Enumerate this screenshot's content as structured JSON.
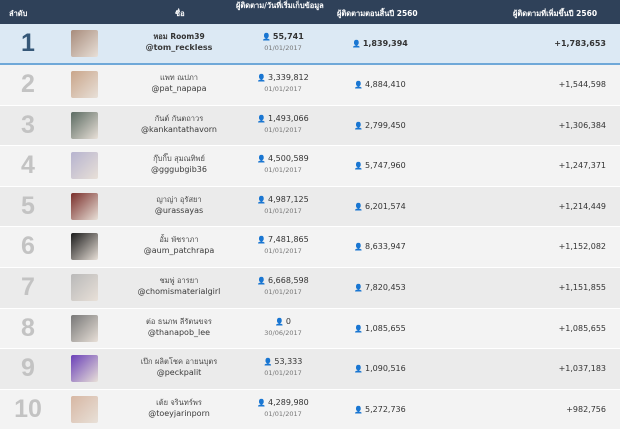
{
  "header": {
    "rank": "ลำดับ",
    "name": "ชื่อ",
    "start": "ผู้ติดตาม/วันที่เริ่มเก็บข้อมูล",
    "end": "ผู้ติดตามตอนสิ้นปี 2560",
    "growth": "ผู้ติดตามที่เพิ่มขึ้นปี 2560"
  },
  "rows": [
    {
      "rank": "1",
      "name": "หอม Room39",
      "handle": "@tom_reckless",
      "start": "55,741",
      "date": "01/01/2017",
      "end": "1,839,394",
      "growth": "+1,783,653",
      "avatar_color": "#a88c7c"
    },
    {
      "rank": "2",
      "name": "แพท ณปภา",
      "handle": "@pat_napapa",
      "start": "3,339,812",
      "date": "01/01/2017",
      "end": "4,884,410",
      "growth": "+1,544,598",
      "avatar_color": "#c9a58a"
    },
    {
      "rank": "3",
      "name": "กันต์ กันตถาวร",
      "handle": "@kankantathavorn",
      "start": "1,493,066",
      "date": "01/01/2017",
      "end": "2,799,450",
      "growth": "+1,306,384",
      "avatar_color": "#5b6b62"
    },
    {
      "rank": "4",
      "name": "กุ๊บกิ๊บ สุมณทิพย์",
      "handle": "@gggubgib36",
      "start": "4,500,589",
      "date": "01/01/2017",
      "end": "5,747,960",
      "growth": "+1,247,371",
      "avatar_color": "#b6b3cf"
    },
    {
      "rank": "5",
      "name": "ญาญ่า อุรัสยา",
      "handle": "@urassayas",
      "start": "4,987,125",
      "date": "01/01/2017",
      "end": "6,201,574",
      "growth": "+1,214,449",
      "avatar_color": "#7a2e2a"
    },
    {
      "rank": "6",
      "name": "อั้ม พัชราภา",
      "handle": "@aum_patchrapa",
      "start": "7,481,865",
      "date": "01/01/2017",
      "end": "8,633,947",
      "growth": "+1,152,082",
      "avatar_color": "#1b1b1b"
    },
    {
      "rank": "7",
      "name": "ชมพู่ อารยา",
      "handle": "@chomismaterialgirl",
      "start": "6,668,598",
      "date": "01/01/2017",
      "end": "7,820,453",
      "growth": "+1,151,855",
      "avatar_color": "#b9b9b9"
    },
    {
      "rank": "8",
      "name": "ต่อ ธนภพ ลีรัตนขจร",
      "handle": "@thanapob_lee",
      "start": "0",
      "date": "30/06/2017",
      "end": "1,085,655",
      "growth": "+1,085,655",
      "avatar_color": "#777777"
    },
    {
      "rank": "9",
      "name": "เป๊ก ผลิตโชค อายนบุตร",
      "handle": "@peckpalit",
      "start": "53,333",
      "date": "01/01/2017",
      "end": "1,090,516",
      "growth": "+1,037,183",
      "avatar_color": "#6a3fb8"
    },
    {
      "rank": "10",
      "name": "เต้ย จรินทร์พร",
      "handle": "@toeyjarinporn",
      "start": "4,289,980",
      "date": "01/01/2017",
      "end": "5,272,736",
      "growth": "+982,756",
      "avatar_color": "#d7b7a3"
    }
  ]
}
